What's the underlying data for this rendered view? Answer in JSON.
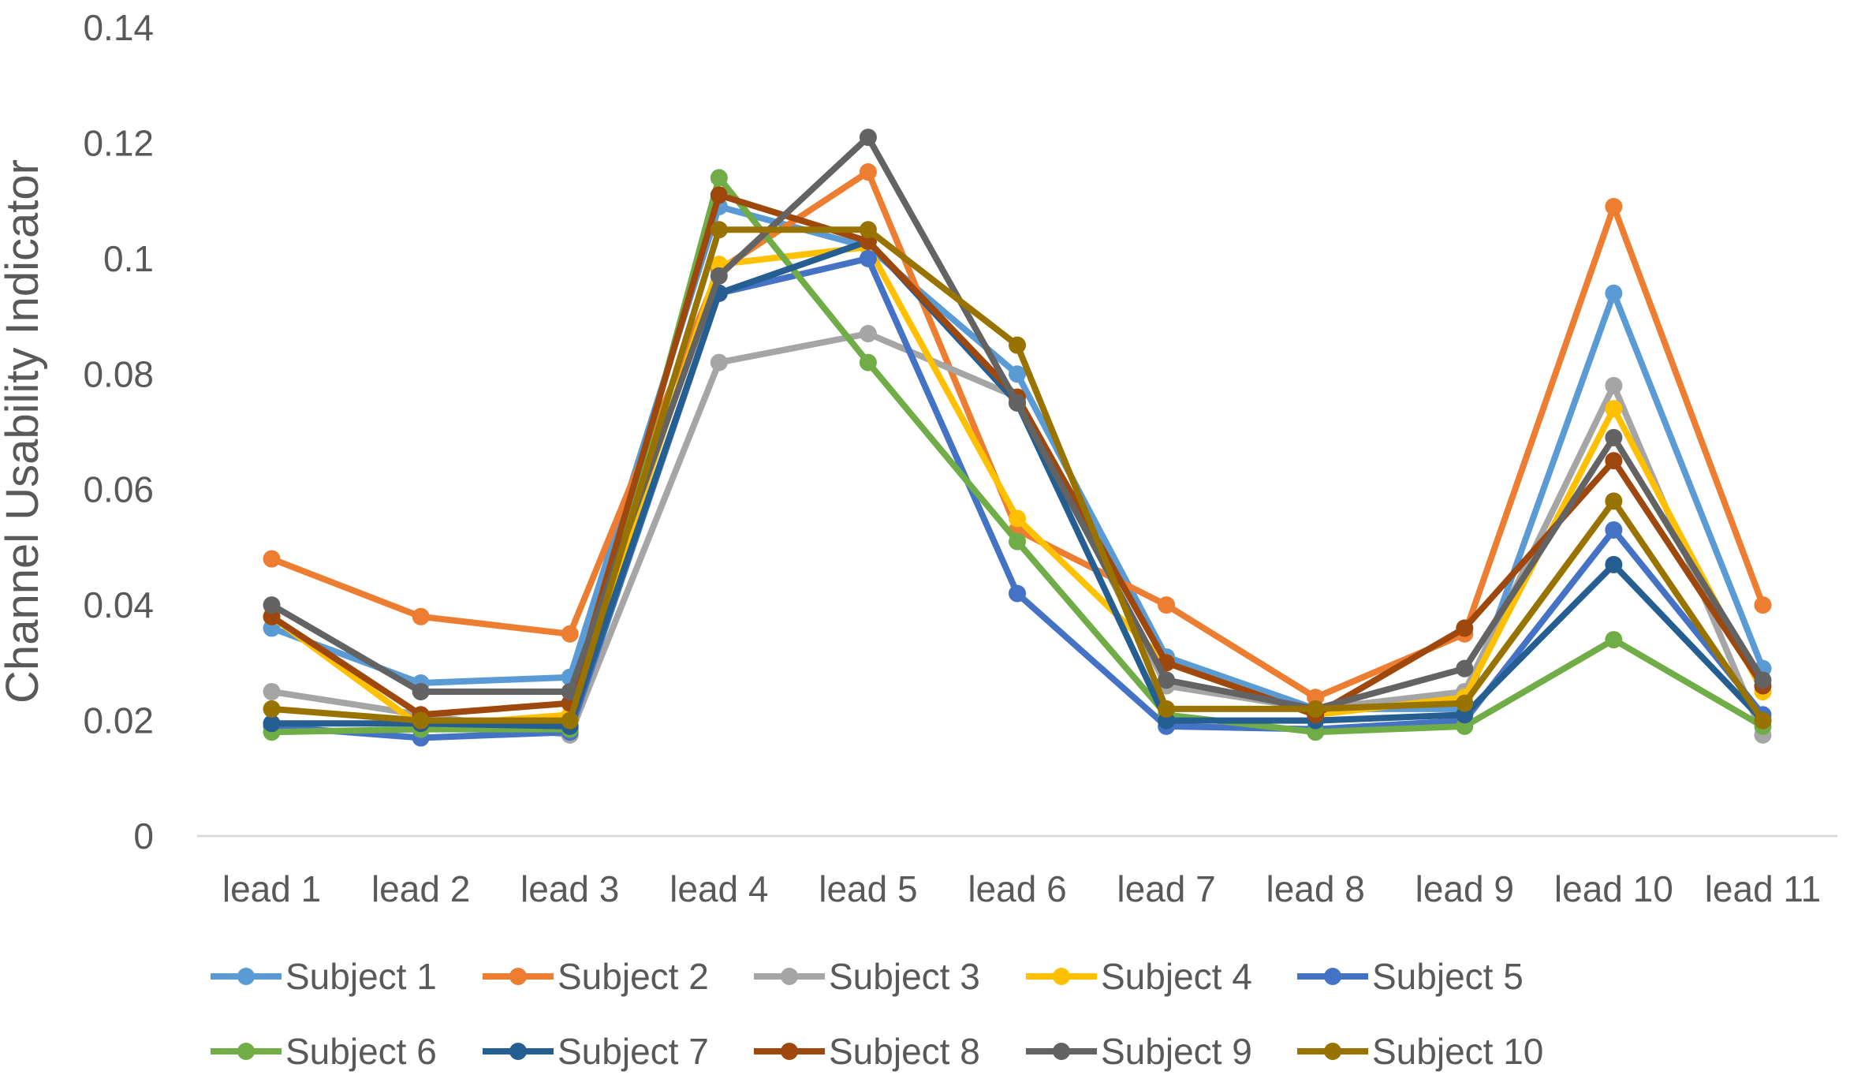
{
  "chart_data": {
    "type": "line",
    "title": "",
    "xlabel": "",
    "ylabel": "Channel Usability Indicator",
    "categories": [
      "lead 1",
      "lead 2",
      "lead 3",
      "lead 4",
      "lead 5",
      "lead 6",
      "lead 7",
      "lead 8",
      "lead 9",
      "lead 10",
      "lead 11"
    ],
    "ylim": [
      0,
      0.14
    ],
    "yticks": [
      0,
      0.02,
      0.04,
      0.06,
      0.08,
      0.1,
      0.12,
      0.14
    ],
    "ytick_labels": [
      "0",
      "0.02",
      "0.04",
      "0.06",
      "0.08",
      "0.1",
      "0.12",
      "0.14"
    ],
    "grid": false,
    "legend_position": "bottom",
    "series": [
      {
        "name": "Subject 1",
        "color": "#5B9BD5",
        "values": [
          0.036,
          0.0265,
          0.0275,
          0.109,
          0.102,
          0.08,
          0.031,
          0.022,
          0.022,
          0.094,
          0.029
        ]
      },
      {
        "name": "Subject 2",
        "color": "#ED7D31",
        "values": [
          0.048,
          0.038,
          0.035,
          0.098,
          0.115,
          0.053,
          0.04,
          0.024,
          0.035,
          0.109,
          0.04
        ]
      },
      {
        "name": "Subject 3",
        "color": "#A5A5A5",
        "values": [
          0.025,
          0.021,
          0.0175,
          0.082,
          0.087,
          0.076,
          0.026,
          0.022,
          0.025,
          0.078,
          0.0175
        ]
      },
      {
        "name": "Subject 4",
        "color": "#FFC000",
        "values": [
          0.038,
          0.019,
          0.021,
          0.099,
          0.102,
          0.055,
          0.03,
          0.021,
          0.024,
          0.074,
          0.025
        ]
      },
      {
        "name": "Subject 5",
        "color": "#4472C4",
        "values": [
          0.019,
          0.017,
          0.018,
          0.094,
          0.1,
          0.042,
          0.019,
          0.0185,
          0.02,
          0.053,
          0.021
        ]
      },
      {
        "name": "Subject 6",
        "color": "#70AD47",
        "values": [
          0.018,
          0.0185,
          0.0185,
          0.114,
          0.082,
          0.051,
          0.021,
          0.018,
          0.019,
          0.034,
          0.019
        ]
      },
      {
        "name": "Subject 7",
        "color": "#255E91",
        "values": [
          0.0195,
          0.0195,
          0.019,
          0.094,
          0.103,
          0.075,
          0.02,
          0.02,
          0.021,
          0.047,
          0.02
        ]
      },
      {
        "name": "Subject 8",
        "color": "#9E480E",
        "values": [
          0.038,
          0.021,
          0.023,
          0.111,
          0.103,
          0.076,
          0.03,
          0.021,
          0.036,
          0.065,
          0.026
        ]
      },
      {
        "name": "Subject 9",
        "color": "#636363",
        "values": [
          0.04,
          0.025,
          0.025,
          0.097,
          0.121,
          0.075,
          0.027,
          0.022,
          0.029,
          0.069,
          0.027
        ]
      },
      {
        "name": "Subject 10",
        "color": "#997300",
        "values": [
          0.022,
          0.02,
          0.02,
          0.105,
          0.105,
          0.085,
          0.022,
          0.022,
          0.023,
          0.058,
          0.02
        ]
      }
    ]
  }
}
